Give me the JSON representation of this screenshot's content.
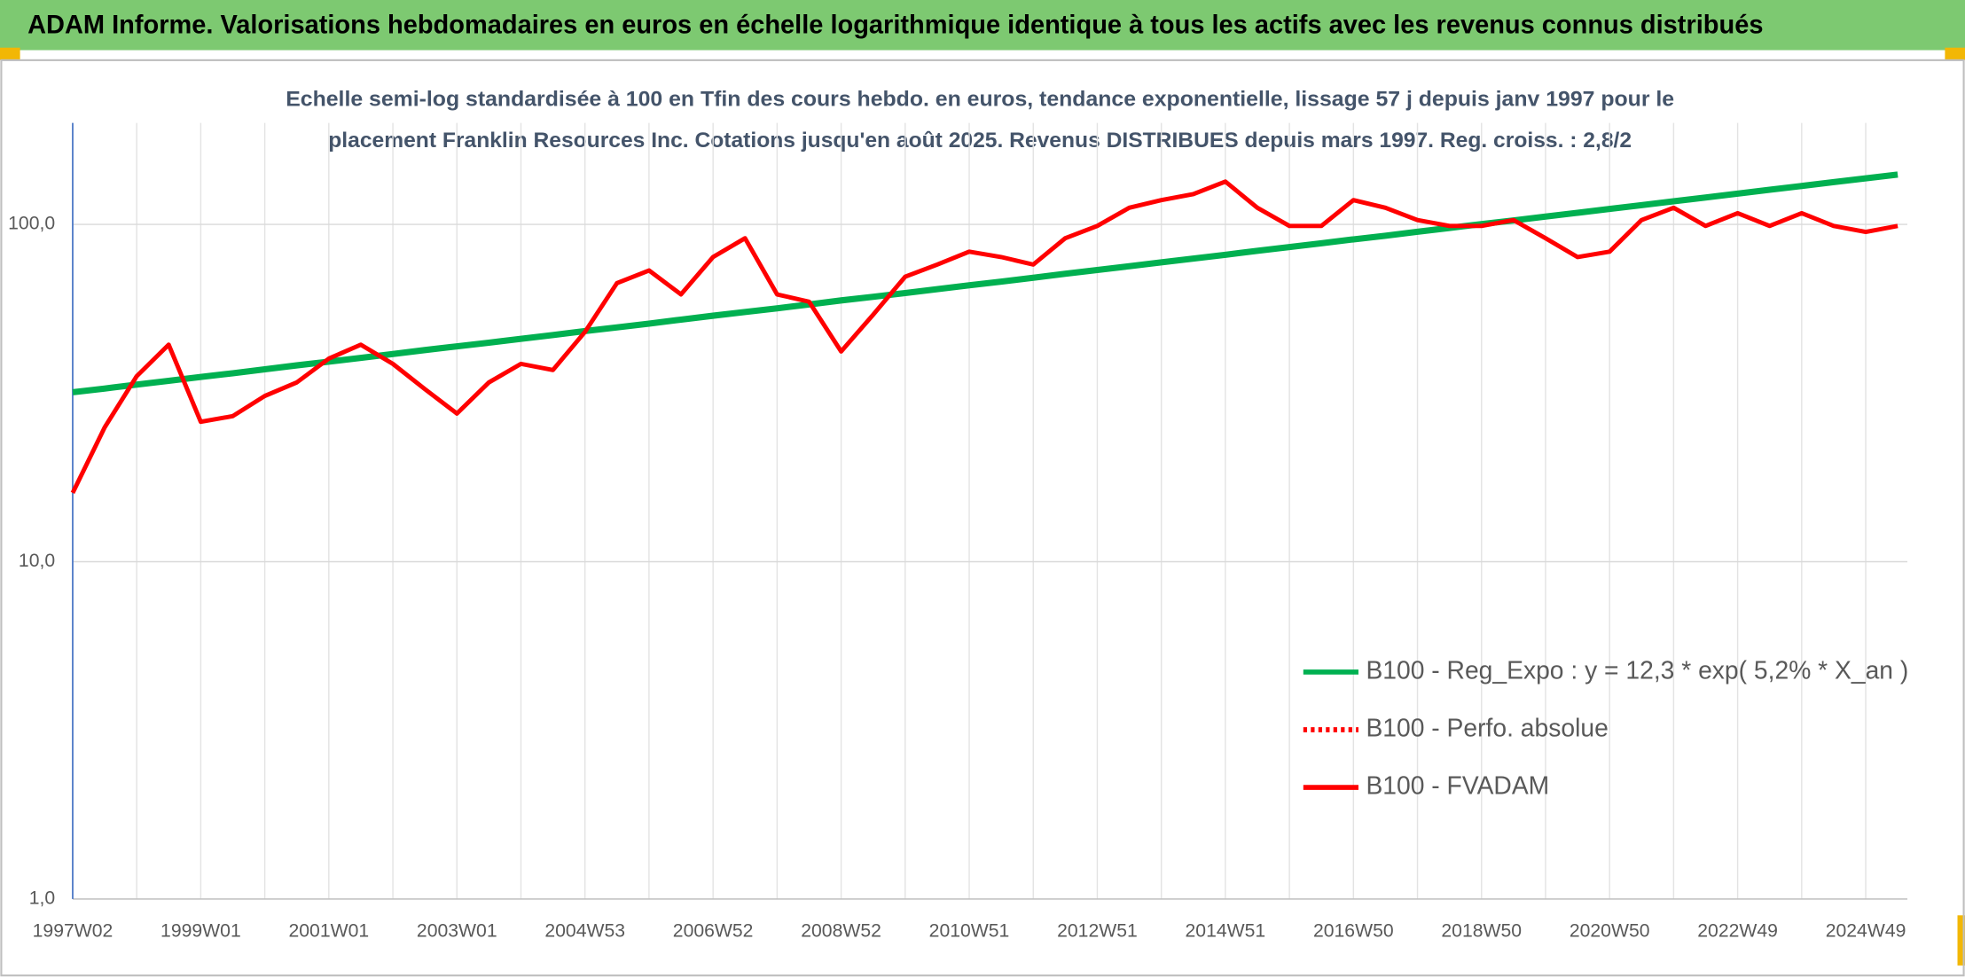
{
  "header": {
    "title": "ADAM Informe. Valorisations hebdomadaires en euros en échelle logarithmique identique à tous les actifs avec les revenus connus distribués"
  },
  "chart_data": {
    "type": "line",
    "subtitle": [
      "Echelle semi-log standardisée à 100 en Tfin des cours hebdo. en euros, tendance exponentielle, lissage 57 j depuis janv 1997 pour le",
      "placement Franklin Resources Inc. Cotations jusqu'en août 2025. Revenus DISTRIBUES depuis mars 1997. Reg. croiss. : 2,8/2"
    ],
    "categories": [
      "1997W02",
      null,
      null,
      null,
      "1999W01",
      null,
      null,
      null,
      "2001W01",
      null,
      null,
      null,
      "2003W01",
      null,
      null,
      null,
      "2004W53",
      null,
      null,
      null,
      "2006W52",
      null,
      null,
      null,
      "2008W52",
      null,
      null,
      null,
      "2010W51",
      null,
      null,
      null,
      "2012W51",
      null,
      null,
      null,
      "2014W51",
      null,
      null,
      null,
      "2016W50",
      null,
      null,
      null,
      "2018W50",
      null,
      null,
      null,
      "2020W50",
      null,
      null,
      null,
      "2022W49",
      null,
      null,
      null,
      "2024W49",
      null
    ],
    "series": [
      {
        "name": "B100 - Reg_Expo : y = 12,3 * exp( 5,2% *  X_an )",
        "color": "#00b050",
        "line_style": "solid",
        "values": [
          31.8,
          32.6,
          33.5,
          34.4,
          35.3,
          36.2,
          37.2,
          38.2,
          39.2,
          40.2,
          41.3,
          42.4,
          43.5,
          44.6,
          45.8,
          47.0,
          48.3,
          49.5,
          50.8,
          52.2,
          53.6,
          55.0,
          56.4,
          57.9,
          59.5,
          61.0,
          62.6,
          64.3,
          66.0,
          67.7,
          69.5,
          71.4,
          73.3,
          75.2,
          77.2,
          79.2,
          81.3,
          83.5,
          85.7,
          87.9,
          90.3,
          92.6,
          95.1,
          97.6,
          100.2,
          102.8,
          105.5,
          108.3,
          111.2,
          114.1,
          117.1,
          120.2,
          123.4,
          126.7,
          130.0,
          133.5,
          137.0,
          140.6
        ]
      },
      {
        "name": "B100 - Perfo. absolue",
        "color": "#ff0000",
        "line_style": "dotted",
        "values": [
          null,
          null,
          null,
          null,
          null,
          null,
          null,
          null,
          null,
          null,
          null,
          null,
          null,
          null,
          null,
          null,
          null,
          null,
          null,
          null,
          null,
          null,
          null,
          null,
          null,
          null,
          null,
          null,
          null,
          null,
          null,
          null,
          null,
          null,
          null,
          null,
          null,
          null,
          null,
          null,
          null,
          null,
          null,
          null,
          null,
          null,
          null,
          null,
          null,
          null,
          null,
          null,
          null,
          null,
          null,
          null,
          null,
          null
        ]
      },
      {
        "name": "B100 - FVADAM",
        "color": "#ff0000",
        "line_style": "solid",
        "values": [
          16,
          25,
          35.5,
          44,
          26,
          27,
          31,
          34,
          40,
          44,
          38.6,
          32.5,
          27.5,
          34,
          38.6,
          37,
          48,
          67,
          73,
          62,
          80,
          91,
          62,
          59,
          42,
          54,
          70,
          76,
          83,
          80,
          76,
          91,
          99,
          112,
          118,
          123,
          134,
          112,
          99,
          99,
          118,
          112,
          103,
          99,
          99,
          103,
          91,
          80,
          83,
          103,
          112,
          99,
          108,
          99,
          108,
          99,
          95,
          99
        ]
      }
    ],
    "log_scale": true,
    "ylim": [
      1,
      200
    ],
    "yticks": [
      {
        "value": 1,
        "label": "1,0"
      },
      {
        "value": 10,
        "label": "10,0"
      },
      {
        "value": 100,
        "label": "100,0"
      }
    ],
    "grid": true,
    "legend": "lower right"
  }
}
